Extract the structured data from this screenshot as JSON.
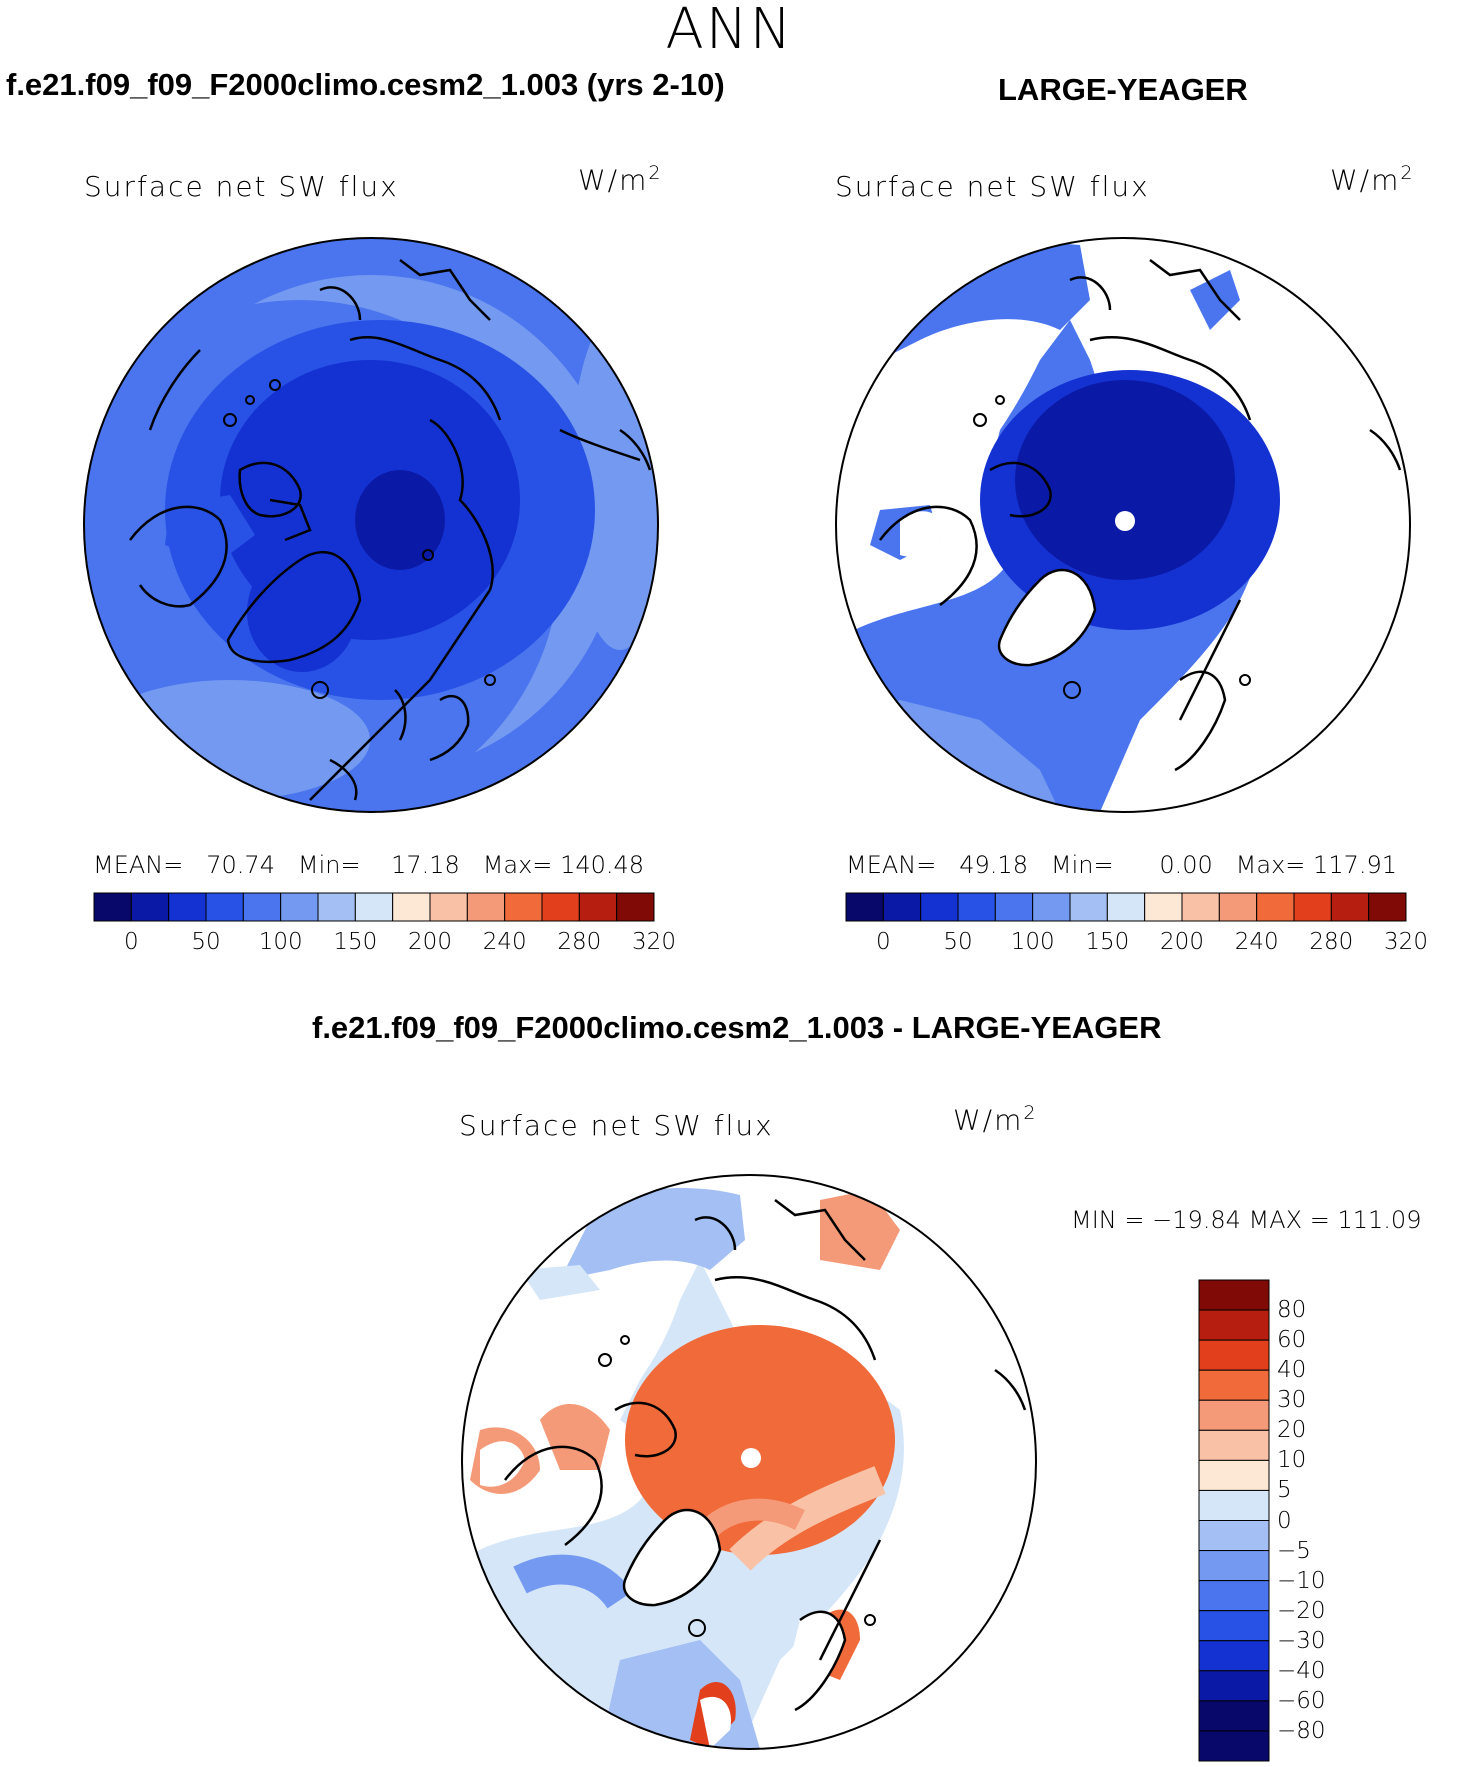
{
  "figure": {
    "season": "ANN",
    "variable": "Surface net SW flux",
    "units_base": "W/m",
    "units_exp": "2"
  },
  "panels": {
    "test": {
      "title": "f.e21.f09_f09_F2000climo.cesm2_1.003 (yrs 2-10)",
      "mean_label": "MEAN=",
      "mean": "70.74",
      "min_label": "Min=",
      "min": "17.18",
      "max_label": "Max=",
      "max": "140.48"
    },
    "obs": {
      "title": "LARGE-YEAGER",
      "mean_label": "MEAN=",
      "mean": "49.18",
      "min_label": "Min=",
      "min": "0.00",
      "max_label": "Max=",
      "max": "117.91"
    },
    "diff": {
      "title": "f.e21.f09_f09_F2000climo.cesm2_1.003 - LARGE-YEAGER",
      "minmax": "MIN = −19.84 MAX = 111.09"
    }
  },
  "chart_data": [
    {
      "type": "heatmap",
      "projection": "north polar stereographic",
      "title": "f.e21.f09_f09_F2000climo.cesm2_1.003 (yrs 2-10)",
      "variable": "Surface net SW flux",
      "units": "W/m2",
      "colorbar_tick_labels": [
        "0",
        "50",
        "100",
        "150",
        "200",
        "240",
        "280",
        "320"
      ],
      "colors": [
        "#08086b",
        "#0b1aa6",
        "#1432d2",
        "#2852e6",
        "#4a75ee",
        "#7499f0",
        "#a3bff3",
        "#d5e6f8",
        "#fde8d6",
        "#f9c2a6",
        "#f59a78",
        "#f06a3a",
        "#e2401c",
        "#b61f10",
        "#7f0a06"
      ],
      "mean": 70.74,
      "min": 17.18,
      "max": 140.48
    },
    {
      "type": "heatmap",
      "projection": "north polar stereographic",
      "title": "LARGE-YEAGER",
      "variable": "Surface net SW flux",
      "units": "W/m2",
      "colorbar_tick_labels": [
        "0",
        "50",
        "100",
        "150",
        "200",
        "240",
        "280",
        "320"
      ],
      "colors": [
        "#08086b",
        "#0b1aa6",
        "#1432d2",
        "#2852e6",
        "#4a75ee",
        "#7499f0",
        "#a3bff3",
        "#d5e6f8",
        "#fde8d6",
        "#f9c2a6",
        "#f59a78",
        "#f06a3a",
        "#e2401c",
        "#b61f10",
        "#7f0a06"
      ],
      "mean": 49.18,
      "min": 0.0,
      "max": 117.91
    },
    {
      "type": "heatmap",
      "projection": "north polar stereographic",
      "title": "f.e21.f09_f09_F2000climo.cesm2_1.003 - LARGE-YEAGER",
      "variable": "Surface net SW flux",
      "units": "W/m2",
      "colorbar_tick_labels": [
        "80",
        "60",
        "40",
        "30",
        "20",
        "10",
        "5",
        "0",
        "−5",
        "−10",
        "−20",
        "−30",
        "−40",
        "−60",
        "−80"
      ],
      "colors": [
        "#7f0a06",
        "#b61f10",
        "#e2401c",
        "#f06a3a",
        "#f59a78",
        "#f9c2a6",
        "#fde8d6",
        "#d5e6f8",
        "#a3bff3",
        "#7499f0",
        "#4a75ee",
        "#2852e6",
        "#1432d2",
        "#0b1aa6",
        "#08086b"
      ],
      "min": -19.84,
      "max": 111.09
    }
  ]
}
